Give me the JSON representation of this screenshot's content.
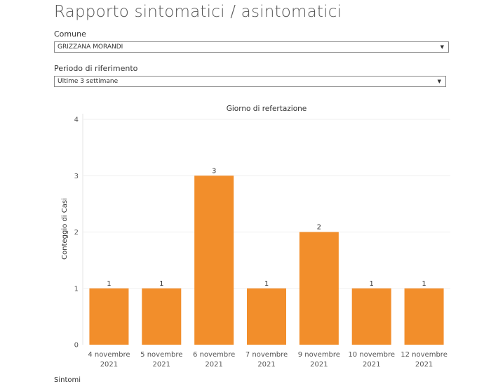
{
  "page": {
    "title": "Rapporto sintomatici / asintomatici"
  },
  "filters": {
    "comune": {
      "label": "Comune",
      "value": "GRIZZANA MORANDI"
    },
    "periodo": {
      "label": "Periodo di riferimento",
      "value": "Ultime 3 settimane"
    }
  },
  "chart_data": {
    "type": "bar",
    "title": "Giorno di refertazione",
    "ylabel": "Conteggio di Casi",
    "xlabel": "",
    "categories": [
      [
        "4 novembre",
        "2021"
      ],
      [
        "5 novembre",
        "2021"
      ],
      [
        "6 novembre",
        "2021"
      ],
      [
        "7 novembre",
        "2021"
      ],
      [
        "9 novembre",
        "2021"
      ],
      [
        "10 novembre",
        "2021"
      ],
      [
        "12 novembre",
        "2021"
      ]
    ],
    "values": [
      1,
      1,
      3,
      1,
      2,
      1,
      1
    ],
    "ylim": [
      0,
      4
    ],
    "yticks": [
      0,
      1,
      2,
      3,
      4
    ],
    "bar_color": "#f28e2b",
    "grid": true,
    "data_labels": true
  },
  "next_section": {
    "title": "Sintomi"
  }
}
